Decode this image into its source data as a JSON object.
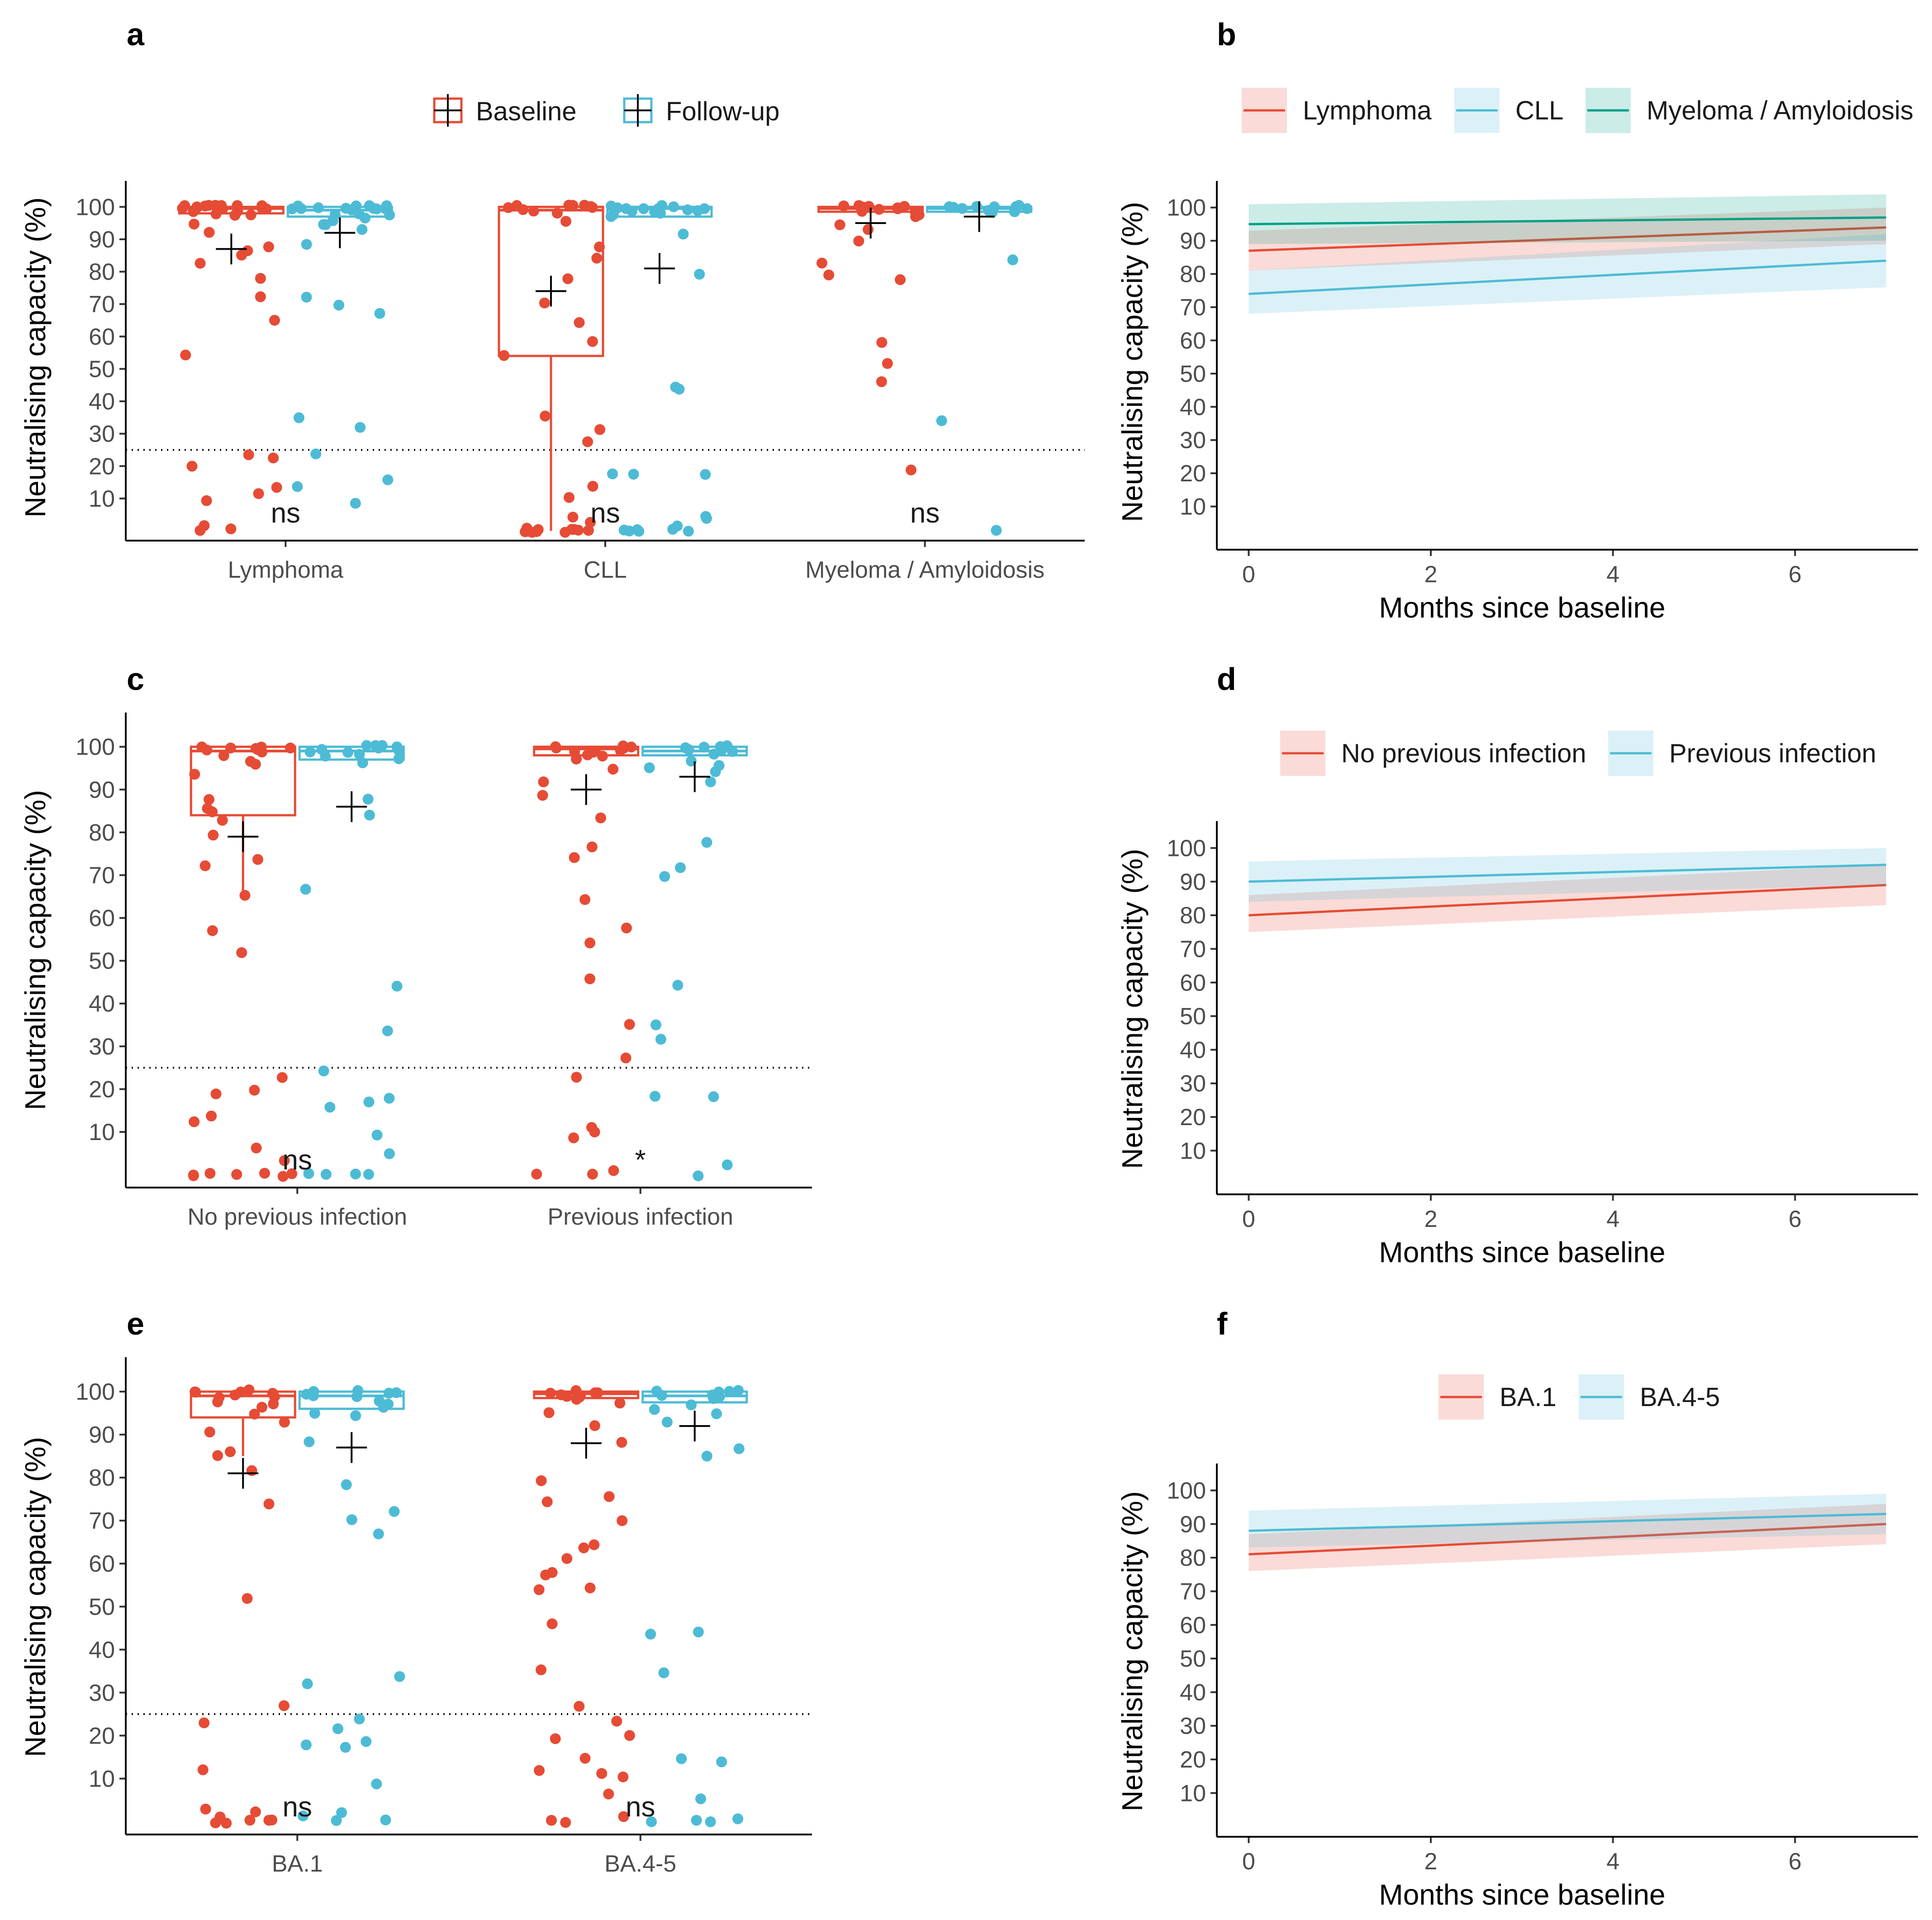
{
  "colors": {
    "baseline": "#e64b35",
    "followup": "#4dbbd5",
    "myeloma": "#00a087",
    "axis": "#000000",
    "tick": "#4d4d4d"
  },
  "chart_data": [
    {
      "id": "a",
      "panel_label": "a",
      "type": "box_jitter",
      "ylabel": "Neutralising capacity (%)",
      "yticks": [
        10,
        20,
        30,
        40,
        50,
        60,
        70,
        80,
        90,
        100
      ],
      "ylim": [
        -3,
        108
      ],
      "threshold": 25,
      "legend": [
        "Baseline",
        "Follow-up"
      ],
      "categories": [
        "Lymphoma",
        "CLL",
        "Myeloma / Amyloidosis"
      ],
      "significance": [
        "ns",
        "ns",
        "ns"
      ],
      "groups": [
        {
          "cat": 0,
          "series": "Baseline",
          "box": {
            "q1": 98,
            "median": 99.5,
            "q3": 100
          },
          "whisker": [
            98,
            100
          ],
          "mean": 87,
          "points": [
            100,
            100,
            100,
            100,
            99,
            100,
            99,
            100,
            99,
            98,
            100,
            99,
            100,
            98,
            99,
            100,
            99,
            97,
            98,
            95,
            92,
            88,
            86,
            85,
            83,
            78,
            72,
            65,
            54,
            23,
            22,
            20,
            13,
            11,
            9,
            2,
            1,
            0.5
          ]
        },
        {
          "cat": 0,
          "series": "Follow-up",
          "box": {
            "q1": 97,
            "median": 99,
            "q3": 100
          },
          "whisker": [
            97,
            100
          ],
          "mean": 92,
          "points": [
            100,
            100,
            100,
            99,
            100,
            99,
            99,
            100,
            98,
            100,
            99,
            97,
            98,
            96,
            99,
            100,
            98,
            95,
            95,
            93,
            88,
            72,
            70,
            67,
            35,
            32,
            24,
            16,
            14,
            9
          ]
        },
        {
          "cat": 1,
          "series": "Baseline",
          "box": {
            "q1": 54,
            "median": 99,
            "q3": 100
          },
          "whisker": [
            0,
            100
          ],
          "mean": 74,
          "points": [
            100,
            100,
            100,
            100,
            99,
            100,
            100,
            99,
            100,
            98,
            96,
            88,
            84,
            78,
            70,
            64,
            58,
            54,
            36,
            31,
            27,
            14,
            10,
            4,
            3,
            1,
            0,
            0,
            0,
            0,
            0,
            0,
            0,
            0,
            0,
            0
          ]
        },
        {
          "cat": 1,
          "series": "Follow-up",
          "box": {
            "q1": 97,
            "median": 99.5,
            "q3": 100
          },
          "whisker": [
            97,
            100
          ],
          "mean": 81,
          "points": [
            100,
            100,
            100,
            99,
            100,
            100,
            99,
            98,
            100,
            99,
            100,
            97,
            99,
            98,
            100,
            92,
            79,
            44,
            44,
            18,
            18,
            17,
            5,
            4,
            1,
            0,
            0,
            0,
            0,
            0,
            0
          ]
        },
        {
          "cat": 2,
          "series": "Baseline",
          "box": {
            "q1": 98.5,
            "median": 99.5,
            "q3": 100
          },
          "whisker": [
            98.5,
            100
          ],
          "mean": 95,
          "points": [
            100,
            100,
            99,
            100,
            100,
            98,
            99,
            97,
            100,
            99,
            100,
            98,
            95,
            93,
            90,
            83,
            79,
            78,
            58,
            52,
            46,
            19
          ]
        },
        {
          "cat": 2,
          "series": "Follow-up",
          "box": {
            "q1": 98.5,
            "median": 99.5,
            "q3": 100
          },
          "whisker": [
            98.5,
            100
          ],
          "mean": 97,
          "points": [
            100,
            100,
            99,
            100,
            99,
            100,
            99,
            98,
            100,
            100,
            98,
            84,
            34,
            0
          ]
        }
      ]
    },
    {
      "id": "b",
      "panel_label": "b",
      "type": "line_ribbon",
      "xlabel": "Months since baseline",
      "ylabel": "Neutralising capacity (%)",
      "xticks": [
        0,
        2,
        4,
        6
      ],
      "xlim": [
        -0.35,
        7.35
      ],
      "yticks": [
        10,
        20,
        30,
        40,
        50,
        60,
        70,
        80,
        90,
        100
      ],
      "ylim": [
        -3,
        108
      ],
      "series": [
        {
          "name": "Lymphoma",
          "x": [
            0,
            7
          ],
          "y": [
            87,
            94
          ],
          "lower": [
            81,
            89
          ],
          "upper": [
            93,
            100
          ]
        },
        {
          "name": "CLL",
          "x": [
            0,
            7
          ],
          "y": [
            74,
            84
          ],
          "lower": [
            68,
            76
          ],
          "upper": [
            81,
            92
          ]
        },
        {
          "name": "Myeloma / Amyloidosis",
          "x": [
            0,
            7
          ],
          "y": [
            95,
            97
          ],
          "lower": [
            89,
            90
          ],
          "upper": [
            101,
            104
          ]
        }
      ]
    },
    {
      "id": "c",
      "panel_label": "c",
      "type": "box_jitter",
      "ylabel": "Neutralising capacity (%)",
      "yticks": [
        10,
        20,
        30,
        40,
        50,
        60,
        70,
        80,
        90,
        100
      ],
      "ylim": [
        -3,
        108
      ],
      "threshold": 25,
      "categories": [
        "No previous infection",
        "Previous infection"
      ],
      "significance": [
        "ns",
        "*"
      ],
      "groups": [
        {
          "cat": 0,
          "series": "Baseline",
          "box": {
            "q1": 84,
            "median": 99,
            "q3": 100
          },
          "whisker": [
            65,
            100
          ],
          "mean": 79,
          "points": [
            100,
            100,
            99,
            100,
            99,
            100,
            98,
            100,
            99,
            97,
            96,
            94,
            88,
            86,
            85,
            83,
            79,
            74,
            72,
            65,
            57,
            52,
            23,
            20,
            19,
            14,
            12,
            6,
            3,
            0,
            0,
            0,
            0,
            0,
            0,
            0
          ]
        },
        {
          "cat": 0,
          "series": "Follow-up",
          "box": {
            "q1": 97,
            "median": 99,
            "q3": 100
          },
          "whisker": [
            97,
            100
          ],
          "mean": 86,
          "points": [
            100,
            100,
            99,
            100,
            99,
            98,
            100,
            99,
            97,
            98,
            96,
            100,
            99,
            88,
            84,
            67,
            44,
            34,
            24,
            18,
            17,
            16,
            9,
            5,
            0,
            0,
            0,
            0
          ]
        },
        {
          "cat": 1,
          "series": "Baseline",
          "box": {
            "q1": 98,
            "median": 99.5,
            "q3": 100
          },
          "whisker": [
            98,
            100
          ],
          "mean": 90,
          "points": [
            100,
            100,
            99,
            100,
            99,
            100,
            98,
            100,
            99,
            99,
            97,
            98,
            95,
            92,
            89,
            83,
            77,
            74,
            64,
            58,
            54,
            46,
            35,
            27,
            23,
            11,
            10,
            9,
            1,
            0,
            0
          ]
        },
        {
          "cat": 1,
          "series": "Follow-up",
          "box": {
            "q1": 98,
            "median": 99,
            "q3": 100
          },
          "whisker": [
            98,
            100
          ],
          "mean": 93,
          "points": [
            100,
            100,
            99,
            100,
            99,
            98,
            100,
            99,
            97,
            96,
            95,
            94,
            92,
            78,
            72,
            70,
            44,
            35,
            32,
            18,
            18,
            2,
            0
          ]
        }
      ]
    },
    {
      "id": "d",
      "panel_label": "d",
      "type": "line_ribbon",
      "xlabel": "Months since baseline",
      "ylabel": "Neutralising capacity (%)",
      "xticks": [
        0,
        2,
        4,
        6
      ],
      "xlim": [
        -0.35,
        7.35
      ],
      "yticks": [
        10,
        20,
        30,
        40,
        50,
        60,
        70,
        80,
        90,
        100
      ],
      "ylim": [
        -3,
        108
      ],
      "series": [
        {
          "name": "No previous infection",
          "x": [
            0,
            7
          ],
          "y": [
            80,
            89
          ],
          "lower": [
            75,
            83
          ],
          "upper": [
            86,
            95
          ]
        },
        {
          "name": "Previous infection",
          "x": [
            0,
            7
          ],
          "y": [
            90,
            95
          ],
          "lower": [
            84,
            89
          ],
          "upper": [
            96,
            100
          ]
        }
      ]
    },
    {
      "id": "e",
      "panel_label": "e",
      "type": "box_jitter",
      "ylabel": "Neutralising capacity (%)",
      "yticks": [
        10,
        20,
        30,
        40,
        50,
        60,
        70,
        80,
        90,
        100
      ],
      "ylim": [
        -3,
        108
      ],
      "threshold": 25,
      "categories": [
        "BA.1",
        "BA.4-5"
      ],
      "significance": [
        "ns",
        "ns"
      ],
      "groups": [
        {
          "cat": 0,
          "series": "Baseline",
          "box": {
            "q1": 94,
            "median": 99,
            "q3": 100
          },
          "whisker": [
            85,
            100
          ],
          "mean": 81,
          "points": [
            100,
            100,
            99,
            100,
            99,
            100,
            98,
            100,
            99,
            97,
            96,
            95,
            93,
            91,
            86,
            85,
            82,
            74,
            52,
            27,
            23,
            12,
            3,
            2,
            1,
            0,
            0,
            0,
            0,
            0
          ]
        },
        {
          "cat": 0,
          "series": "Follow-up",
          "box": {
            "q1": 96,
            "median": 99,
            "q3": 100
          },
          "whisker": [
            96,
            100
          ],
          "mean": 87,
          "points": [
            100,
            100,
            99,
            100,
            99,
            98,
            100,
            99,
            97,
            96,
            95,
            94,
            88,
            78,
            72,
            70,
            67,
            34,
            32,
            24,
            22,
            19,
            18,
            17,
            9,
            2,
            1,
            0,
            0
          ]
        },
        {
          "cat": 1,
          "series": "Baseline",
          "box": {
            "q1": 98.5,
            "median": 99.5,
            "q3": 100
          },
          "whisker": [
            98.5,
            100
          ],
          "mean": 88,
          "points": [
            100,
            100,
            99,
            100,
            99,
            100,
            98,
            100,
            99,
            99,
            97,
            95,
            92,
            88,
            79,
            76,
            74,
            70,
            64,
            64,
            61,
            58,
            57,
            54,
            54,
            46,
            35,
            27,
            23,
            20,
            19,
            15,
            12,
            11,
            10,
            6,
            1,
            0,
            0
          ]
        },
        {
          "cat": 1,
          "series": "Follow-up",
          "box": {
            "q1": 97.5,
            "median": 99,
            "q3": 100
          },
          "whisker": [
            97.5,
            100
          ],
          "mean": 92,
          "points": [
            100,
            100,
            99,
            100,
            99,
            98,
            100,
            99,
            97,
            96,
            95,
            93,
            87,
            85,
            44,
            44,
            35,
            15,
            14,
            5,
            1,
            0,
            0,
            0
          ]
        }
      ]
    },
    {
      "id": "f",
      "panel_label": "f",
      "type": "line_ribbon",
      "xlabel": "Months since baseline",
      "ylabel": "Neutralising capacity (%)",
      "xticks": [
        0,
        2,
        4,
        6
      ],
      "xlim": [
        -0.35,
        7.35
      ],
      "yticks": [
        10,
        20,
        30,
        40,
        50,
        60,
        70,
        80,
        90,
        100
      ],
      "ylim": [
        -3,
        108
      ],
      "series": [
        {
          "name": "BA.1",
          "x": [
            0,
            7
          ],
          "y": [
            81,
            90
          ],
          "lower": [
            76,
            84
          ],
          "upper": [
            87,
            96
          ]
        },
        {
          "name": "BA.4-5",
          "x": [
            0,
            7
          ],
          "y": [
            88,
            93
          ],
          "lower": [
            83,
            87
          ],
          "upper": [
            94,
            99
          ]
        }
      ]
    }
  ]
}
